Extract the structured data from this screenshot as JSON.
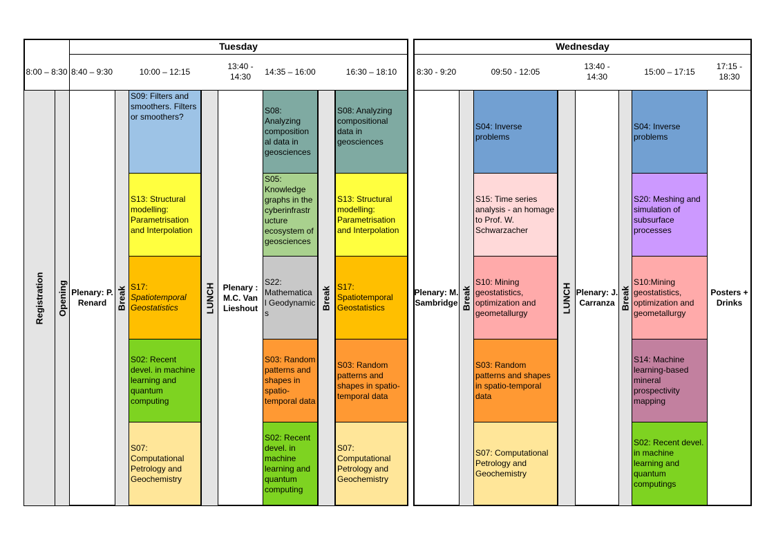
{
  "days": {
    "tuesday": "Tuesday",
    "wednesday": "Wednesday"
  },
  "times": {
    "t0": "8:00 – 8:30",
    "t1": "8:40 – 9:30",
    "t2": "10:00 – 12:15",
    "t3": "13:40 - 14:30",
    "t4": "14:35 – 16:00",
    "t5": "16:30 – 18:10",
    "w1": "8:30 - 9:20",
    "w2": "09:50 - 12:05",
    "w3": "13:40 - 14:30",
    "w4": "15:00 – 17:15",
    "w5": "17:15 - 18:30"
  },
  "labels": {
    "registration": "Registration",
    "opening": "Opening",
    "break": "Break",
    "lunch": "LUNCH",
    "plenary_renard": "Plenary: P. Renard",
    "plenary_lieshout": "Plenary : M.C. Van Lieshout",
    "plenary_sambridge": "Plenary: M. Sambridge",
    "plenary_carranza": "Plenary: J. Carranza",
    "posters": "Posters + Drinks"
  },
  "tue_col1": [
    {
      "pre": "S09: Filters and smoothers. Filters or smoothers?",
      "em": "",
      "color": "#9dc3e6"
    },
    {
      "pre": "S13: Structural modelling: Parametrisation and Interpolation",
      "em": "",
      "color": "#ffff3f"
    },
    {
      "pre": "S17: ",
      "em": "Spatiotemporal Geostatistics",
      "color": "#ffbf00"
    },
    {
      "pre": "S02: Recent devel. in machine learning and quantum computing",
      "em": "",
      "color": "#7ed321"
    },
    {
      "pre": "S07: Computational Petrology and Geochemistry",
      "em": "",
      "color": "#ffe699"
    }
  ],
  "tue_col2": [
    {
      "pre": "S08: Analyzing composition al data in geosciences",
      "color": "#7faaa2"
    },
    {
      "pre": "S05: Knowledge graphs in the cyberinfrastr ucture ecosystem of geosciences",
      "color": "#a9d18e"
    },
    {
      "pre": "S22: Mathematica l Geodynamic s",
      "color": "#c8c8c8"
    },
    {
      "pre": "S03: Random patterns and shapes in spatio-temporal data",
      "color": "#ff9933"
    },
    {
      "pre": "S02: Recent devel. in machine learning and quantum computing",
      "color": "#7ed321"
    }
  ],
  "tue_col3": [
    {
      "pre": "S08: Analyzing compositional data in geosciences",
      "color": "#7faaa2"
    },
    {
      "pre": "S13: Structural modelling: Parametrisation and Interpolation",
      "color": "#ffff3f"
    },
    {
      "pre": "S17: Spatiotemporal Geostatistics",
      "color": "#ffbf00"
    },
    {
      "pre": "S03: Random patterns and shapes in spatio-temporal data",
      "color": "#ff9933"
    },
    {
      "pre": "S07: Computational Petrology and Geochemistry",
      "color": "#ffe699"
    }
  ],
  "wed_col1": [
    {
      "pre": "S04: Inverse problems",
      "color": "#72a0d2"
    },
    {
      "pre": "S15: Time series analysis - an homage to Prof. W. Schwarzacher",
      "color": "#ffd9d9"
    },
    {
      "pre": "S10: Mining geostatistics, optimization and geometallurgy",
      "color": "#ffaaaa"
    },
    {
      "pre": "S03: Random patterns and shapes in spatio-temporal data",
      "color": "#ff9933"
    },
    {
      "pre": "S07: Computational Petrology and Geochemistry",
      "color": "#ffe699"
    }
  ],
  "wed_col2": [
    {
      "pre": "S04: Inverse problems",
      "color": "#72a0d2"
    },
    {
      "pre": "S20: Meshing and simulation of subsurface processes",
      "color": "#cc99ff"
    },
    {
      "pre": "S10:Mining geostatistics, optimization and geometallurgy",
      "color": "#ffaaaa"
    },
    {
      "pre": "S14: Machine learning-based mineral prospectivity mapping",
      "color": "#c2809f"
    },
    {
      "pre": "S02: Recent devel. in machine learning and quantum computings",
      "color": "#7ed321"
    }
  ]
}
